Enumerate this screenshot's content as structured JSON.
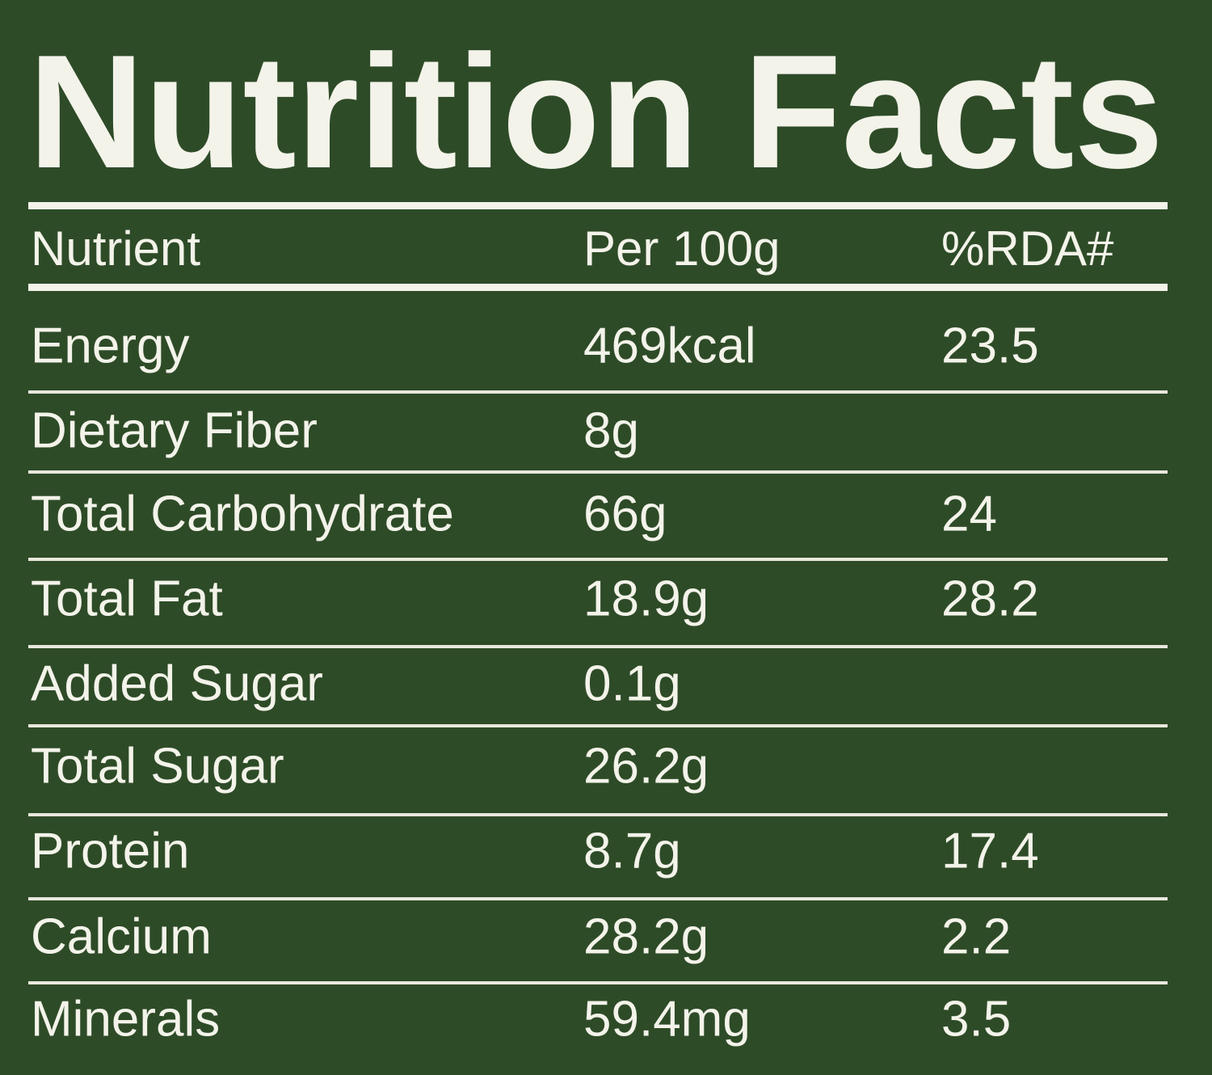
{
  "title": "Nutrition Facts",
  "table": {
    "header": [
      "Nutrient",
      "Per 100g",
      "%RDA#"
    ],
    "rows": [
      {
        "nutrient": "Energy",
        "per_100g": "469kcal",
        "rda": "23.5"
      },
      {
        "nutrient": "Dietary Fiber",
        "per_100g": "8g"
      },
      {
        "nutrient": "Total Carbohydrate",
        "per_100g": "66g",
        "rda": "24"
      },
      {
        "nutrient": "Total Fat",
        "per_100g": "18.9g",
        "rda": "28.2"
      },
      {
        "nutrient": "Added Sugar",
        "per_100g": "0.1g"
      },
      {
        "nutrient": "Total Sugar",
        "per_100g": "26.2g"
      },
      {
        "nutrient": "Protein",
        "per_100g": "8.7g",
        "rda": "17.4"
      },
      {
        "nutrient": "Calcium",
        "per_100g": "28.2g",
        "rda": "2.2"
      },
      {
        "nutrient": "Minerals",
        "per_100g": "59.4mg",
        "rda": "3.5"
      }
    ]
  }
}
